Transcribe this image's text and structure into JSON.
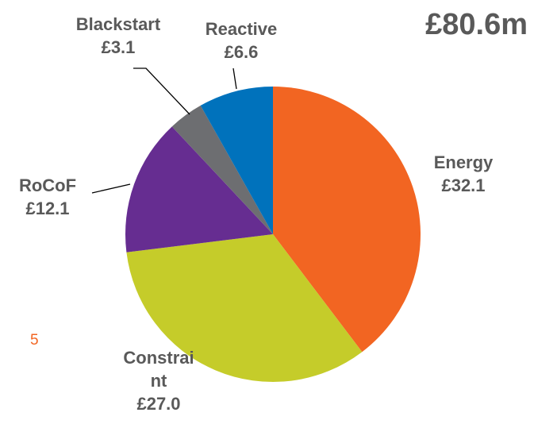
{
  "total_label": "£80.6m",
  "page_number": "5",
  "chart_data": {
    "type": "pie",
    "title": "",
    "total": 80.6,
    "unit": "£m",
    "start_angle_deg": 0,
    "direction": "clockwise",
    "slices": [
      {
        "category": "Energy",
        "value": 32.1,
        "value_label": "£32.1",
        "color": "#F26522"
      },
      {
        "category": "Constraint",
        "category_lines": [
          "Constrai",
          "nt"
        ],
        "value": 27.0,
        "value_label": "£27.0",
        "color": "#C5CC2A"
      },
      {
        "category": "RoCoF",
        "value": 12.1,
        "value_label": "£12.1",
        "color": "#662D91"
      },
      {
        "category": "Blackstart",
        "value": 3.1,
        "value_label": "£3.1",
        "color": "#6D6E71"
      },
      {
        "category": "Reactive",
        "value": 6.6,
        "value_label": "£6.6",
        "color": "#0072BC"
      }
    ]
  }
}
